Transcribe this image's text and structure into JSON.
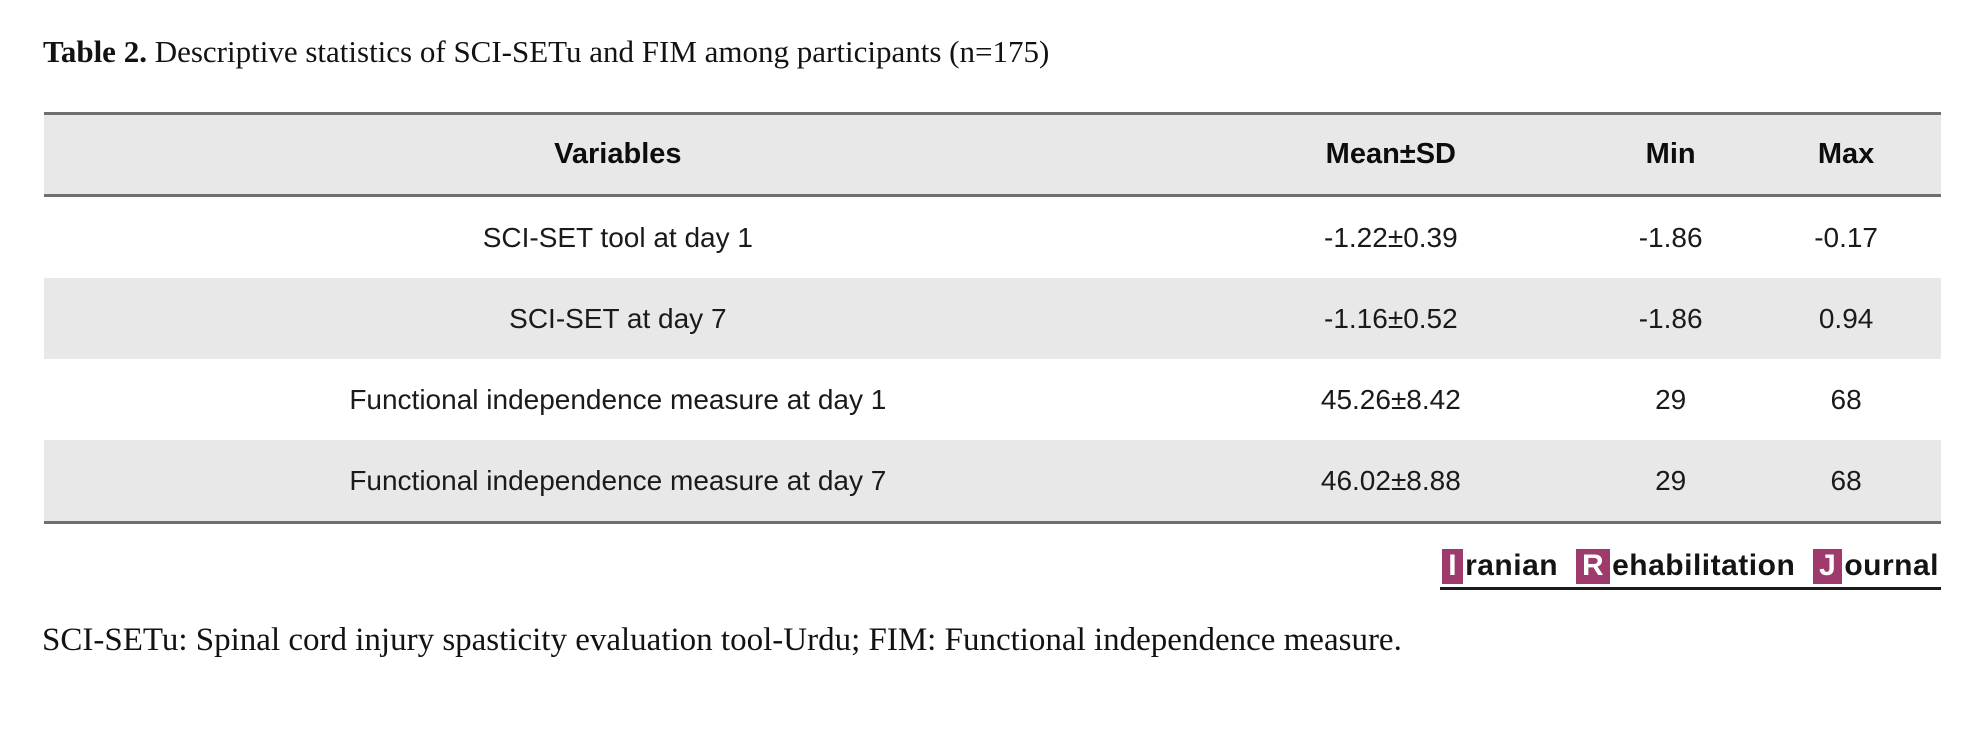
{
  "page": {
    "title_bold": "Table 2.",
    "title_rest": " Descriptive statistics of SCI-SETu and FIM among participants (n=175)",
    "footnote": "SCI-SETu: Spinal cord injury spasticity evaluation tool-Urdu; FIM: Functional independence measure."
  },
  "table": {
    "columns": [
      "Variables",
      "Mean±SD",
      "Min",
      "Max"
    ],
    "rows": [
      {
        "variable": "SCI-SET tool at day 1",
        "mean_sd": "-1.22±0.39",
        "min": "-1.86",
        "max": "-0.17"
      },
      {
        "variable": "SCI-SET at day 7",
        "mean_sd": "-1.16±0.52",
        "min": "-1.86",
        "max": "0.94"
      },
      {
        "variable": "Functional independence measure at day 1",
        "mean_sd": "45.26±8.42",
        "min": "29",
        "max": "68"
      },
      {
        "variable": "Functional independence measure at day 7",
        "mean_sd": "46.02±8.88",
        "min": "29",
        "max": "68"
      }
    ],
    "sample_size": "n=175"
  },
  "journal_logo": {
    "words": [
      {
        "initial": "I",
        "rest": "ranian"
      },
      {
        "initial": "R",
        "rest": "ehabilitation"
      },
      {
        "initial": "J",
        "rest": "ournal"
      }
    ],
    "accent_color": "#9e3a6c"
  },
  "colors": {
    "row_stripe": "#e9e8e8",
    "table_border": "#6f6f6f",
    "text": "#1a1a1a"
  }
}
